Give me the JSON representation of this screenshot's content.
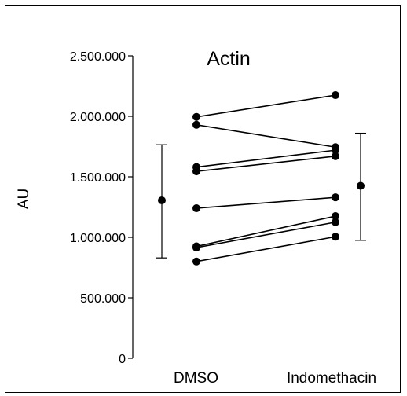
{
  "chart_data": {
    "type": "scatter",
    "title": "Actin",
    "ylabel": "AU",
    "xlabel": "",
    "categories": [
      "DMSO",
      "Indomethacin"
    ],
    "ylim": [
      0,
      2500000
    ],
    "yticks": [
      0,
      500000,
      1000000,
      1500000,
      2000000,
      2500000
    ],
    "ytick_labels": [
      "0",
      "500.000",
      "1.000.000",
      "1.500.000",
      "2.000.000",
      "2.500.000"
    ],
    "pairs": [
      [
        1995000,
        2175000
      ],
      [
        1930000,
        1745000
      ],
      [
        1580000,
        1720000
      ],
      [
        1545000,
        1670000
      ],
      [
        1240000,
        1330000
      ],
      [
        925000,
        1175000
      ],
      [
        915000,
        1125000
      ],
      [
        800000,
        1005000
      ]
    ],
    "summary": [
      {
        "category": "DMSO",
        "mean": 1305000,
        "upper": 1765000,
        "lower": 830000
      },
      {
        "category": "Indomethacin",
        "mean": 1425000,
        "upper": 1860000,
        "lower": 975000
      }
    ],
    "grid": false,
    "legend": "none"
  }
}
